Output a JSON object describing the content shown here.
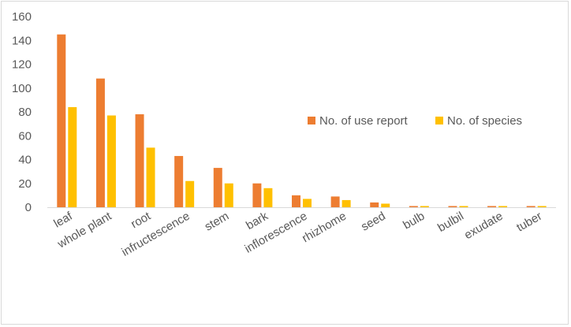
{
  "chart_data": {
    "type": "bar",
    "title": "",
    "xlabel": "",
    "ylabel": "",
    "ylim": [
      0,
      160
    ],
    "yticks": [
      0,
      20,
      40,
      60,
      80,
      100,
      120,
      140,
      160
    ],
    "grid": false,
    "legend_position": "right",
    "categories": [
      "leaf",
      "whole plant",
      "root",
      "infructescence",
      "stem",
      "bark",
      "inflorescence",
      "rhizhome",
      "seed",
      "bulb",
      "bulbil",
      "exudate",
      "tuber"
    ],
    "series": [
      {
        "name": "No. of use report",
        "color": "#ED7D31",
        "values": [
          145,
          108,
          78,
          43,
          33,
          20,
          10,
          9,
          4,
          1,
          1,
          1,
          1
        ]
      },
      {
        "name": "No. of species",
        "color": "#FFC000",
        "values": [
          84,
          77,
          50,
          22,
          20,
          16,
          7,
          6,
          3,
          1,
          1,
          1,
          1
        ]
      }
    ]
  }
}
